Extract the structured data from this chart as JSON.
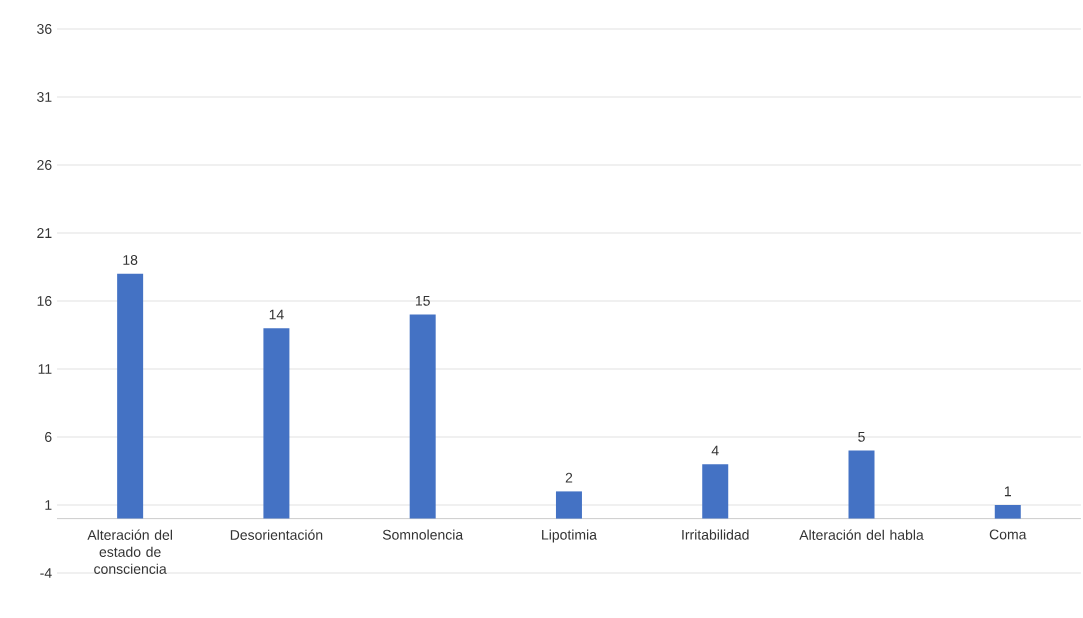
{
  "chart_data": {
    "type": "bar",
    "categories": [
      "Alteración del estado de consciencia",
      "Desorientación",
      "Somnolencia",
      "Lipotimia",
      "Irritabilidad",
      "Alteración del habla",
      "Coma"
    ],
    "values": [
      18,
      14,
      15,
      2,
      4,
      5,
      1
    ],
    "color": "#4472c4",
    "ylim": [
      -4,
      36
    ],
    "yticks": [
      -4,
      1,
      6,
      11,
      16,
      21,
      26,
      31,
      36
    ],
    "grid": "y",
    "data_labels": true
  }
}
